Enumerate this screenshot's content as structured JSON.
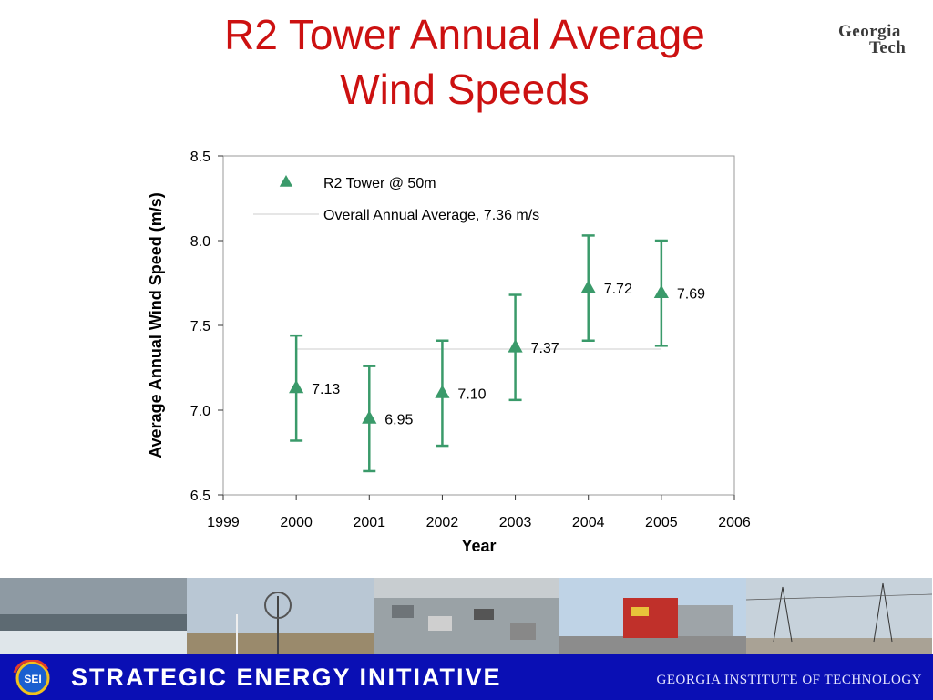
{
  "slide": {
    "title_line1": "R2 Tower Annual Average",
    "title_line2": "Wind Speeds",
    "logo_line1": "Georgia",
    "logo_line2": "Tech"
  },
  "footer": {
    "initiative": "STRATEGIC ENERGY INITIATIVE",
    "badge": "SEI",
    "institute": "GEORGIA INSTITUTE OF TECHNOLOGY"
  },
  "chart_data": {
    "type": "scatter",
    "xlabel": "Year",
    "ylabel": "Average Annual Wind Speed (m/s)",
    "xlim": [
      1999,
      2006
    ],
    "ylim": [
      6.5,
      8.5
    ],
    "x_ticks": [
      "1999",
      "2000",
      "2001",
      "2002",
      "2003",
      "2004",
      "2005",
      "2006"
    ],
    "y_ticks": [
      "8.5",
      "8.0",
      "7.5",
      "7.0",
      "6.5"
    ],
    "grid": false,
    "legend_position": "top",
    "series": [
      {
        "name": "R2 Tower @ 50m",
        "marker": "triangle",
        "color": "#3a9a6a",
        "x": [
          2000,
          2001,
          2002,
          2003,
          2004,
          2005
        ],
        "y": [
          7.13,
          6.95,
          7.1,
          7.37,
          7.72,
          7.69
        ],
        "labels": [
          "7.13",
          "6.95",
          "7.10",
          "7.37",
          "7.72",
          "7.69"
        ],
        "error_low": [
          6.82,
          6.64,
          6.79,
          7.06,
          7.41,
          7.38
        ],
        "error_high": [
          7.44,
          7.26,
          7.41,
          7.68,
          8.03,
          8.0
        ]
      }
    ],
    "reference_line": {
      "name": "Overall Annual Average, 7.36 m/s",
      "value": 7.36,
      "x_range": [
        2000,
        2005
      ],
      "color": "#cccccc"
    }
  }
}
